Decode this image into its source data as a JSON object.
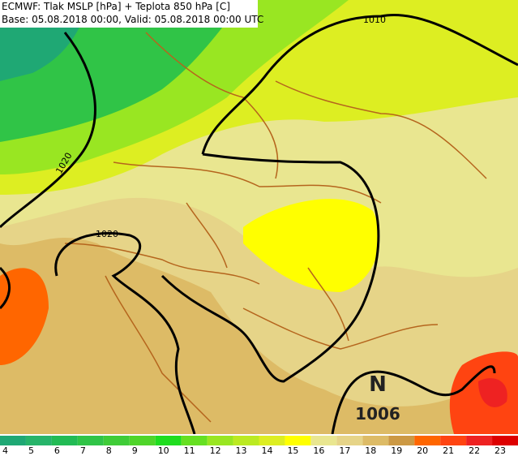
{
  "header": {
    "line1": "ECMWF: Tlak MSLP [hPa] + Teplota 850 hPa [C]",
    "line2": "Base: 05.08.2018 00:00, Valid: 05.08.2018 00:00 UTC"
  },
  "isobar_labels": [
    "1010",
    "1020",
    "1020"
  ],
  "pressure_center": {
    "type": "N",
    "value": "1006"
  },
  "legend": {
    "items": [
      {
        "value": 4,
        "color": "#1fa874"
      },
      {
        "value": 5,
        "color": "#27b46a"
      },
      {
        "value": 6,
        "color": "#22bb55"
      },
      {
        "value": 7,
        "color": "#30c447"
      },
      {
        "value": 8,
        "color": "#3fcc38"
      },
      {
        "value": 9,
        "color": "#4fd52a"
      },
      {
        "value": 10,
        "color": "#1fdd1f"
      },
      {
        "value": 11,
        "color": "#66e022"
      },
      {
        "value": 12,
        "color": "#99e622"
      },
      {
        "value": 13,
        "color": "#bbea22"
      },
      {
        "value": 14,
        "color": "#ddee22"
      },
      {
        "value": 15,
        "color": "#ffff00"
      },
      {
        "value": 16,
        "color": "#e9e690"
      },
      {
        "value": 17,
        "color": "#e6d488"
      },
      {
        "value": 18,
        "color": "#ddbb66"
      },
      {
        "value": 19,
        "color": "#cc9944"
      },
      {
        "value": 20,
        "color": "#ff6600"
      },
      {
        "value": 21,
        "color": "#ff4411"
      },
      {
        "value": 22,
        "color": "#ee2222"
      },
      {
        "value": 23,
        "color": "#dd0000"
      }
    ]
  }
}
